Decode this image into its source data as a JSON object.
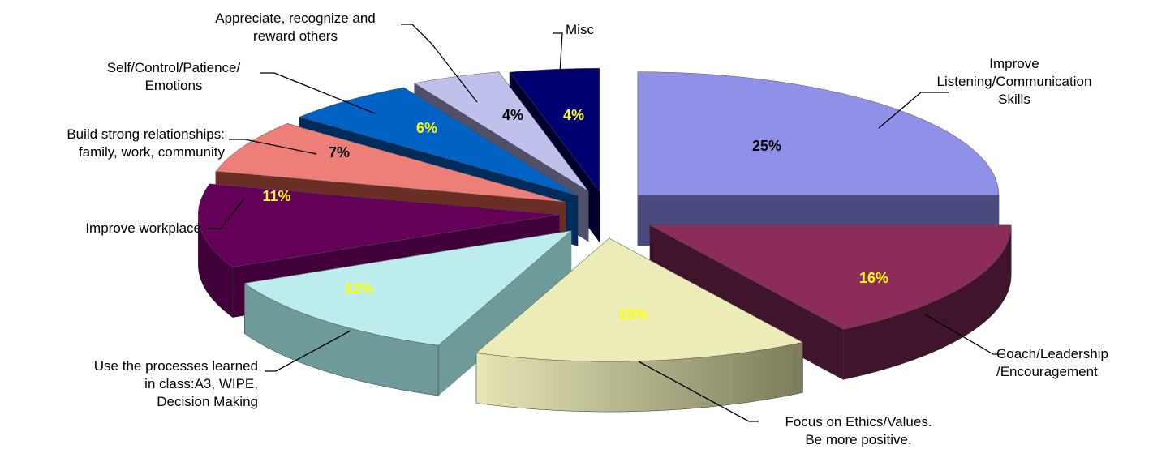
{
  "chart_data": {
    "type": "pie",
    "variant": "3d-exploded",
    "title": "",
    "legend": "none",
    "categories": [
      "Improve Listening/Communication Skills",
      "Coach/Leadership /Encouragement",
      "Focus on Ethics/Values. Be more positive.",
      "Use the processes learned in class:A3, WIPE, Decision Making",
      "Improve workplace",
      "Build strong relationships: family, work, community",
      "Self/Control/Patience/ Emotions",
      "Appreciate, recognize and reward others",
      "Misc"
    ],
    "values": [
      25,
      16,
      15,
      12,
      11,
      7,
      6,
      4,
      4
    ],
    "data_labels": [
      "25%",
      "16%",
      "15%",
      "12%",
      "11%",
      "7%",
      "6%",
      "4%",
      "4%"
    ],
    "category_label_lines": [
      [
        "Improve",
        "Listening/Communication",
        "Skills"
      ],
      [
        "Coach/Leadership",
        "/Encouragement"
      ],
      [
        "Focus on Ethics/Values.",
        "Be more positive."
      ],
      [
        "Use the processes learned",
        "in class:A3, WIPE,",
        "Decision Making"
      ],
      [
        "Improve workplace"
      ],
      [
        "Build strong relationships:",
        "family, work, community"
      ],
      [
        "Self/Control/Patience/",
        "Emotions"
      ],
      [
        "Appreciate, recognize and",
        "reward others"
      ],
      [
        "Misc"
      ]
    ],
    "colors": {
      "top": [
        "#9090e8",
        "#8c2c58",
        "#ececb8",
        "#bdecec",
        "#640058",
        "#ee7e78",
        "#0062c4",
        "#c0c0ec",
        "#000070"
      ],
      "side": [
        "#4a4a7e",
        "#40142a",
        "#7a7a58",
        "#6e9a9a",
        "#42003a",
        "#6a2e24",
        "#002c5c",
        "#505068",
        "#00002c"
      ],
      "label_text": [
        "#000000",
        "#ffff00",
        "#ffff00",
        "#ffff00",
        "#ffff00",
        "#000000",
        "#ffff00",
        "#000000",
        "#ffff00"
      ]
    }
  }
}
